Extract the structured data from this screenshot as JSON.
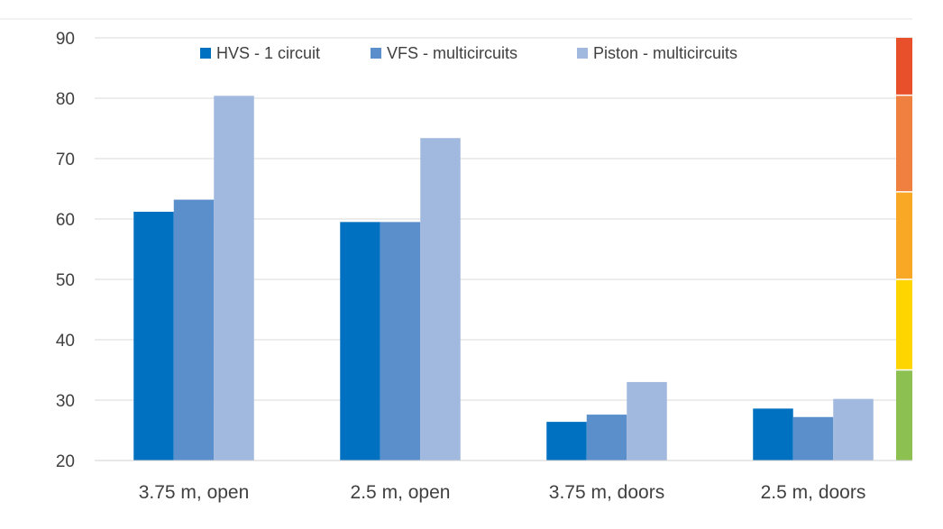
{
  "chart_data": {
    "type": "bar",
    "title": "",
    "xlabel": "",
    "ylabel": "",
    "ylim": [
      20,
      90
    ],
    "yticks": [
      20,
      30,
      40,
      50,
      60,
      70,
      80,
      90
    ],
    "grid": true,
    "legend_position": "top-center",
    "categories": [
      "3.75 m, open",
      "2.5 m, open",
      "3.75 m, doors",
      "2.5 m, doors"
    ],
    "series": [
      {
        "name": "HVS - 1 circuit",
        "color": "#0070c0",
        "values": [
          61.2,
          59.5,
          26.4,
          28.6
        ]
      },
      {
        "name": "VFS - multicircuits",
        "color": "#5b8fcc",
        "values": [
          63.2,
          59.5,
          27.6,
          27.2
        ]
      },
      {
        "name": "Piston - multicircuits",
        "color": "#a1b9de",
        "values": [
          80.4,
          73.4,
          33.0,
          30.2
        ]
      }
    ],
    "color_scale": [
      {
        "from": 20,
        "to": 35,
        "color": "#8cc152"
      },
      {
        "from": 35,
        "to": 50,
        "color": "#ffd500"
      },
      {
        "from": 50,
        "to": 64.5,
        "color": "#f9a825"
      },
      {
        "from": 64.5,
        "to": 80.5,
        "color": "#f08040"
      },
      {
        "from": 80.5,
        "to": 90,
        "color": "#e8502c"
      }
    ]
  }
}
